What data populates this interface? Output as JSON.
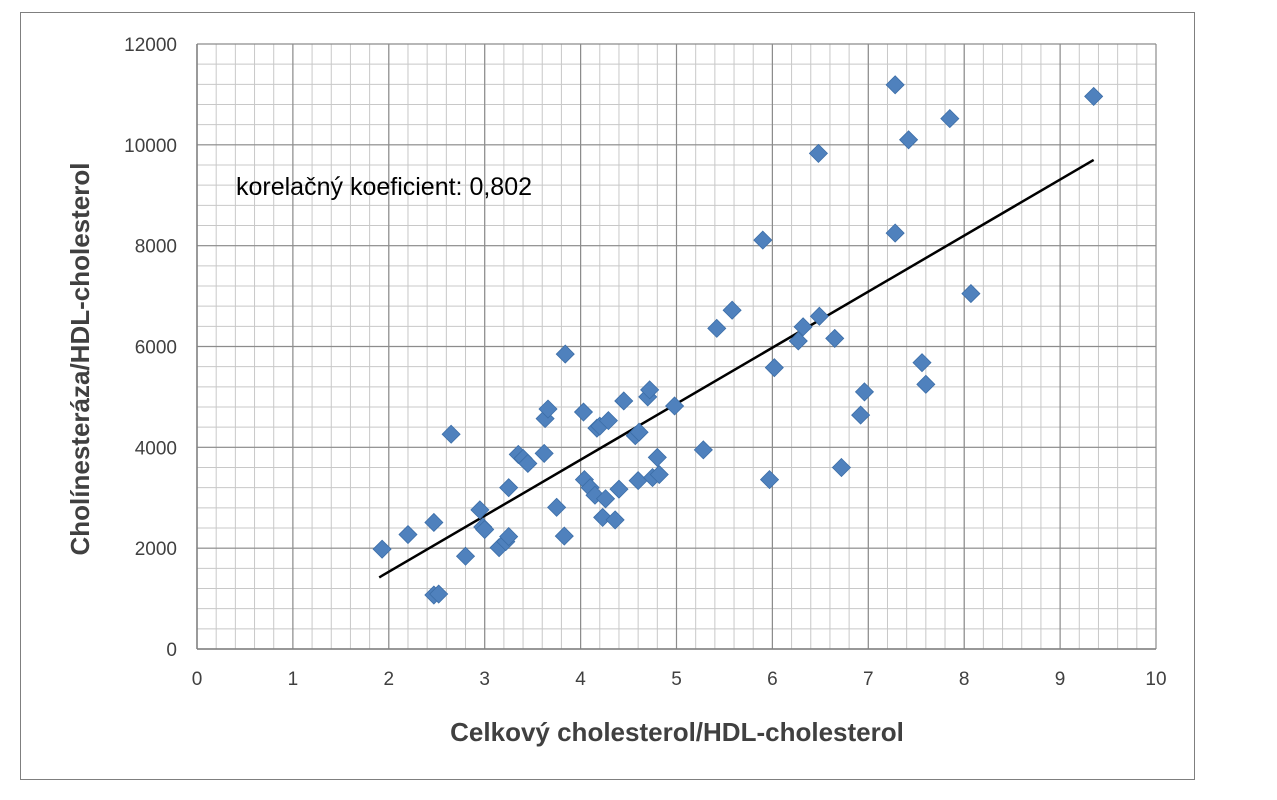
{
  "chart_data": {
    "type": "scatter",
    "title": "",
    "annotation": "korelačný koeficient: 0,802",
    "xlabel": "Celkový cholesterol/HDL-cholesterol",
    "ylabel": "Cholínesteráza/HDL-cholesterol",
    "xlim": [
      0,
      10
    ],
    "ylim": [
      0,
      12000
    ],
    "x_ticks": [
      0,
      1,
      2,
      3,
      4,
      5,
      6,
      7,
      8,
      9,
      10
    ],
    "y_ticks": [
      0,
      2000,
      4000,
      6000,
      8000,
      10000,
      12000
    ],
    "x_minor_step": 0.2,
    "y_minor_step": 400,
    "grid": true,
    "marker_color": "#4f81bd",
    "trendline_color": "#000000",
    "trendline": {
      "x": [
        1.9,
        9.35
      ],
      "y": [
        1420,
        9700
      ]
    },
    "points": [
      {
        "x": 1.93,
        "y": 1980
      },
      {
        "x": 2.2,
        "y": 2270
      },
      {
        "x": 2.47,
        "y": 2510
      },
      {
        "x": 2.47,
        "y": 1070
      },
      {
        "x": 2.52,
        "y": 1090
      },
      {
        "x": 2.65,
        "y": 4260
      },
      {
        "x": 2.8,
        "y": 1840
      },
      {
        "x": 2.95,
        "y": 2760
      },
      {
        "x": 2.98,
        "y": 2420
      },
      {
        "x": 3.0,
        "y": 2370
      },
      {
        "x": 3.15,
        "y": 2010
      },
      {
        "x": 3.22,
        "y": 2130
      },
      {
        "x": 3.25,
        "y": 2230
      },
      {
        "x": 3.25,
        "y": 3200
      },
      {
        "x": 3.35,
        "y": 3860
      },
      {
        "x": 3.4,
        "y": 3780
      },
      {
        "x": 3.45,
        "y": 3680
      },
      {
        "x": 3.62,
        "y": 3880
      },
      {
        "x": 3.63,
        "y": 4570
      },
      {
        "x": 3.66,
        "y": 4760
      },
      {
        "x": 3.75,
        "y": 2810
      },
      {
        "x": 3.83,
        "y": 2240
      },
      {
        "x": 3.84,
        "y": 5850
      },
      {
        "x": 4.03,
        "y": 4700
      },
      {
        "x": 4.04,
        "y": 3360
      },
      {
        "x": 4.1,
        "y": 3200
      },
      {
        "x": 4.15,
        "y": 3050
      },
      {
        "x": 4.17,
        "y": 4380
      },
      {
        "x": 4.2,
        "y": 4420
      },
      {
        "x": 4.23,
        "y": 2610
      },
      {
        "x": 4.26,
        "y": 2980
      },
      {
        "x": 4.29,
        "y": 4530
      },
      {
        "x": 4.36,
        "y": 2560
      },
      {
        "x": 4.4,
        "y": 3170
      },
      {
        "x": 4.45,
        "y": 4920
      },
      {
        "x": 4.57,
        "y": 4230
      },
      {
        "x": 4.6,
        "y": 3340
      },
      {
        "x": 4.61,
        "y": 4300
      },
      {
        "x": 4.7,
        "y": 5000
      },
      {
        "x": 4.72,
        "y": 5140
      },
      {
        "x": 4.75,
        "y": 3400
      },
      {
        "x": 4.8,
        "y": 3800
      },
      {
        "x": 4.82,
        "y": 3460
      },
      {
        "x": 4.98,
        "y": 4820
      },
      {
        "x": 5.28,
        "y": 3950
      },
      {
        "x": 5.42,
        "y": 6360
      },
      {
        "x": 5.58,
        "y": 6720
      },
      {
        "x": 5.9,
        "y": 8110
      },
      {
        "x": 5.97,
        "y": 3360
      },
      {
        "x": 6.02,
        "y": 5580
      },
      {
        "x": 6.27,
        "y": 6110
      },
      {
        "x": 6.32,
        "y": 6390
      },
      {
        "x": 6.49,
        "y": 6600
      },
      {
        "x": 6.48,
        "y": 9830
      },
      {
        "x": 6.65,
        "y": 6160
      },
      {
        "x": 6.72,
        "y": 3600
      },
      {
        "x": 6.92,
        "y": 4640
      },
      {
        "x": 6.96,
        "y": 5100
      },
      {
        "x": 7.28,
        "y": 8250
      },
      {
        "x": 7.28,
        "y": 11190
      },
      {
        "x": 7.42,
        "y": 10100
      },
      {
        "x": 7.56,
        "y": 5680
      },
      {
        "x": 7.6,
        "y": 5250
      },
      {
        "x": 7.85,
        "y": 10520
      },
      {
        "x": 8.07,
        "y": 7050
      },
      {
        "x": 9.35,
        "y": 10960
      }
    ]
  }
}
